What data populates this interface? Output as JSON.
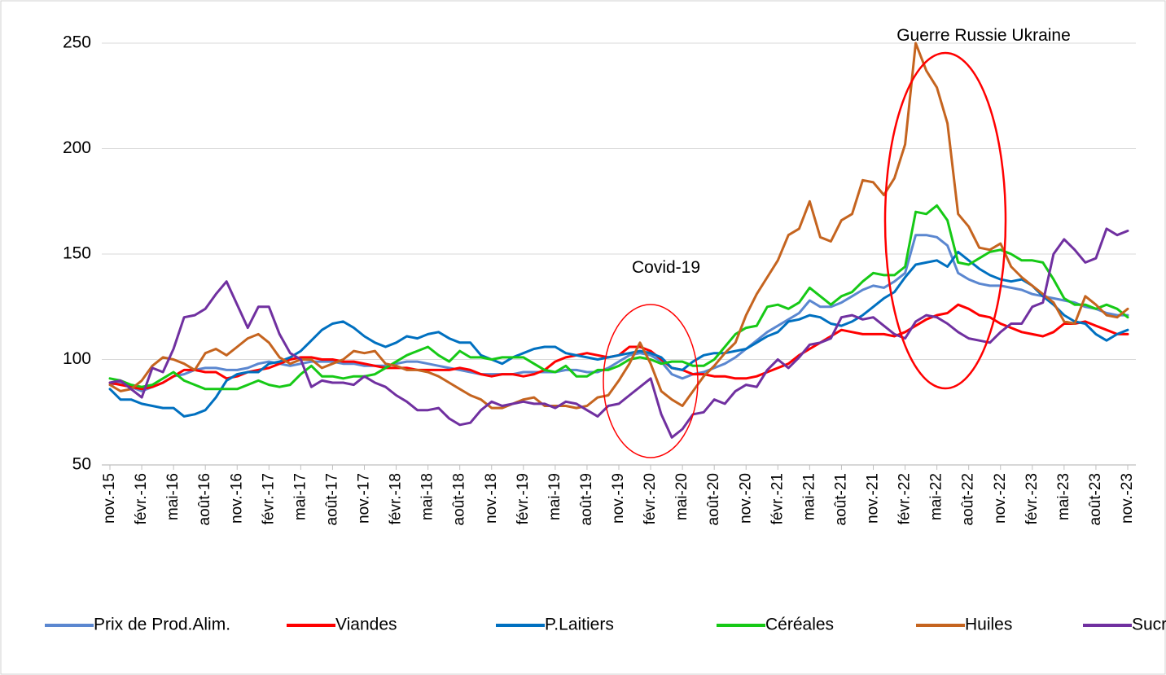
{
  "chart_data": {
    "type": "line",
    "annotations": [
      "Covid-19",
      "Guerre Russie Ukraine"
    ],
    "categories": [
      "nov.-15",
      null,
      null,
      "févr.-16",
      null,
      null,
      "mai-16",
      null,
      null,
      "août-16",
      null,
      null,
      "nov.-16",
      null,
      null,
      "févr.-17",
      null,
      null,
      "mai-17",
      null,
      null,
      "août-17",
      null,
      null,
      "nov.-17",
      null,
      null,
      "févr.-18",
      null,
      null,
      "mai-18",
      null,
      null,
      "août-18",
      null,
      null,
      "nov.-18",
      null,
      null,
      "févr.-19",
      null,
      null,
      "mai-19",
      null,
      null,
      "août-19",
      null,
      null,
      "nov.-19",
      null,
      null,
      "févr.-20",
      null,
      null,
      "mai-20",
      null,
      null,
      "août-20",
      null,
      null,
      "nov.-20",
      null,
      null,
      "févr.-21",
      null,
      null,
      "mai-21",
      null,
      null,
      "août-21",
      null,
      null,
      "nov.-21",
      null,
      null,
      "févr.-22",
      null,
      null,
      "mai-22",
      null,
      null,
      "août-22",
      null,
      null,
      "nov.-22",
      null,
      null,
      "févr.-23",
      null,
      null,
      "mai-23",
      null,
      null,
      "août-23",
      null,
      null,
      "nov.-23"
    ],
    "ylim": [
      50,
      250
    ],
    "yticks": [
      50,
      100,
      150,
      200,
      250
    ],
    "grid": true,
    "legend": "bottom",
    "series": [
      {
        "name": "Prix de Prod.Alim.",
        "color": "#5b87d0",
        "values": [
          88,
          89,
          87,
          85,
          87,
          89,
          92,
          93,
          95,
          96,
          96,
          95,
          95,
          96,
          98,
          99,
          98,
          97,
          98,
          99,
          99,
          99,
          98,
          98,
          97,
          97,
          97,
          98,
          99,
          99,
          98,
          97,
          96,
          95,
          94,
          93,
          93,
          93,
          93,
          94,
          94,
          94,
          94,
          95,
          95,
          94,
          94,
          96,
          99,
          102,
          103,
          102,
          99,
          93,
          91,
          93,
          94,
          96,
          98,
          101,
          105,
          109,
          113,
          116,
          119,
          122,
          128,
          125,
          125,
          127,
          130,
          133,
          135,
          134,
          137,
          141,
          159,
          159,
          158,
          154,
          141,
          138,
          136,
          135,
          135,
          134,
          133,
          131,
          130,
          129,
          128,
          127,
          125,
          124,
          122,
          121,
          121
        ]
      },
      {
        "name": "Viandes",
        "color": "#ff0000",
        "values": [
          89,
          88,
          87,
          86,
          87,
          89,
          92,
          95,
          95,
          94,
          94,
          91,
          92,
          94,
          95,
          96,
          98,
          100,
          101,
          101,
          100,
          100,
          99,
          99,
          98,
          97,
          96,
          96,
          96,
          95,
          95,
          95,
          95,
          96,
          95,
          93,
          92,
          93,
          93,
          92,
          93,
          95,
          99,
          101,
          102,
          103,
          102,
          101,
          102,
          106,
          106,
          104,
          100,
          96,
          95,
          93,
          93,
          92,
          92,
          91,
          91,
          92,
          94,
          96,
          98,
          102,
          105,
          108,
          111,
          114,
          113,
          112,
          112,
          112,
          111,
          113,
          116,
          119,
          121,
          122,
          126,
          124,
          121,
          120,
          117,
          115,
          113,
          112,
          111,
          113,
          117,
          117,
          118,
          116,
          114,
          112,
          112
        ]
      },
      {
        "name": "P.Laitiers",
        "color": "#0070c0",
        "values": [
          86,
          81,
          81,
          79,
          78,
          77,
          77,
          73,
          74,
          76,
          82,
          90,
          93,
          94,
          94,
          98,
          99,
          101,
          104,
          109,
          114,
          117,
          118,
          115,
          111,
          108,
          106,
          108,
          111,
          110,
          112,
          113,
          110,
          108,
          108,
          102,
          100,
          98,
          101,
          103,
          105,
          106,
          106,
          103,
          102,
          101,
          100,
          101,
          102,
          103,
          104,
          103,
          101,
          96,
          95,
          99,
          102,
          103,
          103,
          104,
          105,
          108,
          111,
          113,
          118,
          119,
          121,
          120,
          117,
          116,
          118,
          121,
          125,
          129,
          132,
          139,
          145,
          146,
          147,
          144,
          151,
          147,
          143,
          140,
          138,
          137,
          138,
          135,
          130,
          126,
          121,
          118,
          117,
          112,
          109,
          112,
          114
        ]
      },
      {
        "name": "Céréales",
        "color": "#16c916",
        "values": [
          91,
          90,
          88,
          87,
          88,
          91,
          94,
          90,
          88,
          86,
          86,
          86,
          86,
          88,
          90,
          88,
          87,
          88,
          93,
          97,
          92,
          92,
          91,
          92,
          92,
          93,
          96,
          99,
          102,
          104,
          106,
          102,
          99,
          104,
          101,
          101,
          100,
          101,
          101,
          101,
          98,
          95,
          94,
          97,
          92,
          92,
          95,
          95,
          97,
          100,
          101,
          100,
          98,
          99,
          99,
          97,
          97,
          100,
          106,
          112,
          115,
          116,
          125,
          126,
          124,
          127,
          134,
          130,
          126,
          130,
          132,
          137,
          141,
          140,
          140,
          144,
          170,
          169,
          173,
          166,
          146,
          145,
          148,
          151,
          152,
          150,
          147,
          147,
          146,
          138,
          129,
          126,
          126,
          124,
          126,
          124,
          120
        ]
      },
      {
        "name": "Huiles",
        "color": "#c5641f",
        "values": [
          88,
          85,
          86,
          90,
          97,
          101,
          100,
          98,
          95,
          103,
          105,
          102,
          106,
          110,
          112,
          108,
          101,
          98,
          100,
          100,
          96,
          98,
          100,
          104,
          103,
          104,
          98,
          97,
          95,
          95,
          94,
          92,
          89,
          86,
          83,
          81,
          77,
          77,
          79,
          81,
          82,
          78,
          78,
          78,
          77,
          78,
          82,
          83,
          90,
          98,
          108,
          98,
          85,
          81,
          78,
          85,
          92,
          97,
          103,
          108,
          121,
          131,
          139,
          147,
          159,
          162,
          175,
          158,
          156,
          166,
          169,
          185,
          184,
          178,
          186,
          202,
          250,
          237,
          229,
          212,
          169,
          163,
          153,
          152,
          155,
          144,
          139,
          135,
          131,
          127,
          118,
          117,
          130,
          126,
          121,
          120,
          124
        ]
      },
      {
        "name": "Sucre",
        "color": "#7030a0",
        "values": [
          89,
          90,
          86,
          82,
          96,
          94,
          105,
          120,
          121,
          124,
          131,
          137,
          126,
          115,
          125,
          125,
          112,
          103,
          100,
          87,
          90,
          89,
          89,
          88,
          92,
          89,
          87,
          83,
          80,
          76,
          76,
          77,
          72,
          69,
          70,
          76,
          80,
          78,
          79,
          80,
          79,
          79,
          77,
          80,
          79,
          76,
          73,
          78,
          79,
          83,
          87,
          91,
          74,
          63,
          67,
          74,
          75,
          81,
          79,
          85,
          88,
          87,
          95,
          100,
          96,
          101,
          107,
          108,
          110,
          120,
          121,
          119,
          120,
          116,
          112,
          110,
          118,
          121,
          120,
          117,
          113,
          110,
          109,
          108,
          113,
          117,
          117,
          125,
          127,
          150,
          157,
          152,
          146,
          148,
          162,
          159,
          161
        ]
      }
    ]
  }
}
